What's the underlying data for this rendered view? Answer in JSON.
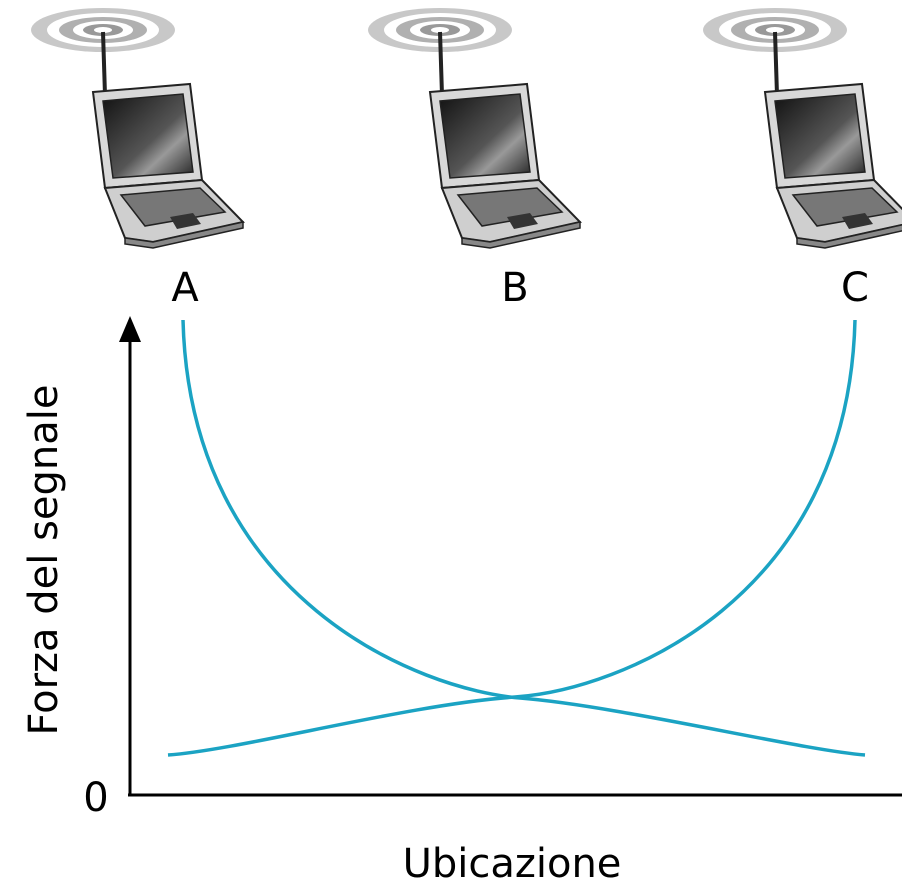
{
  "nodes": [
    {
      "label": "A"
    },
    {
      "label": "B"
    },
    {
      "label": "C"
    }
  ],
  "axes": {
    "y_label": "Forza del segnale",
    "x_label": "Ubicazione",
    "origin": "0"
  }
}
